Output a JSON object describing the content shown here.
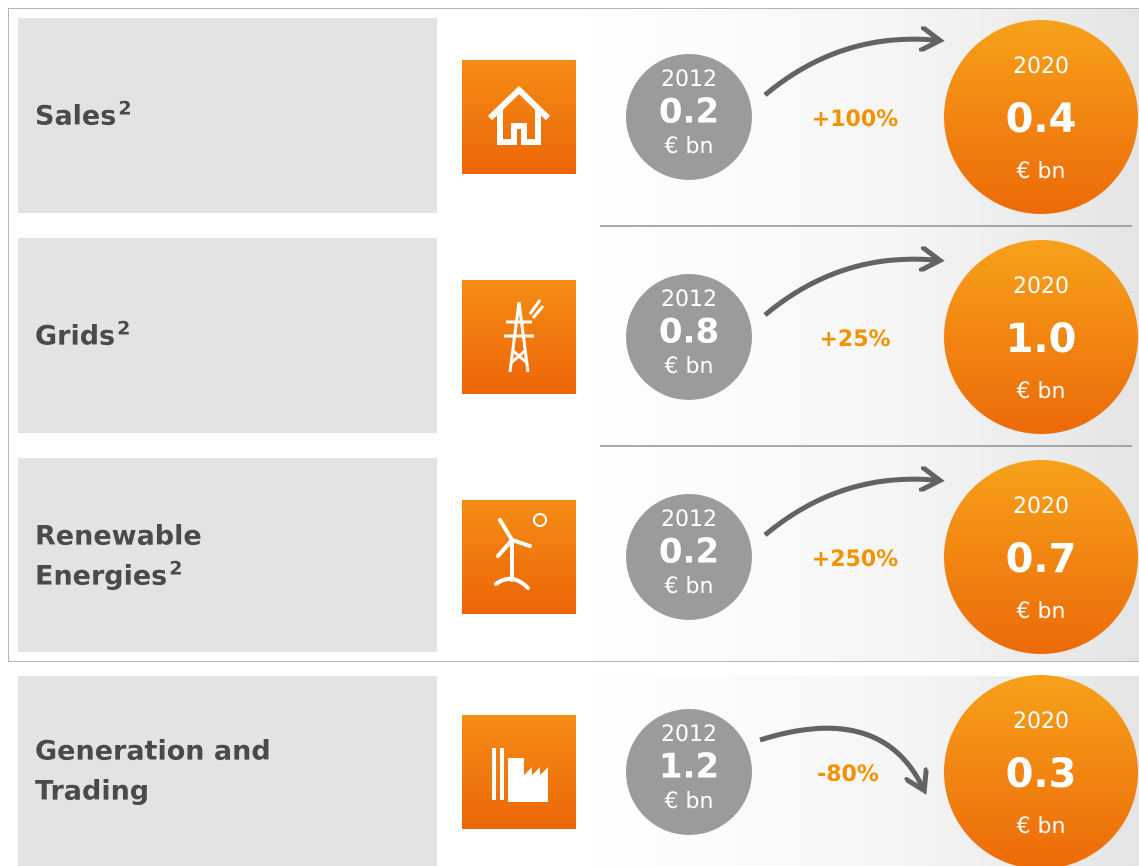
{
  "rows": [
    {
      "label": [
        "Sales"
      ],
      "sup": "2",
      "from": {
        "year": "2012",
        "value": "0.2",
        "unit": "€ bn"
      },
      "change": "+100%",
      "to": {
        "year": "2020",
        "value": "0.4",
        "unit": "€ bn"
      }
    },
    {
      "label": [
        "Grids"
      ],
      "sup": "2",
      "from": {
        "year": "2012",
        "value": "0.8",
        "unit": "€ bn"
      },
      "change": "+25%",
      "to": {
        "year": "2020",
        "value": "1.0",
        "unit": "€ bn"
      }
    },
    {
      "label": [
        "Renewable",
        "Energies"
      ],
      "sup": "2",
      "from": {
        "year": "2012",
        "value": "0.2",
        "unit": "€ bn"
      },
      "change": "+250%",
      "to": {
        "year": "2020",
        "value": "0.7",
        "unit": "€ bn"
      }
    },
    {
      "label": [
        "Generation and",
        "Trading"
      ],
      "from": {
        "year": "2012",
        "value": "1.2",
        "unit": "€ bn"
      },
      "change": "-80%",
      "to": {
        "year": "2020",
        "value": "0.3",
        "unit": "€ bn"
      }
    }
  ]
}
